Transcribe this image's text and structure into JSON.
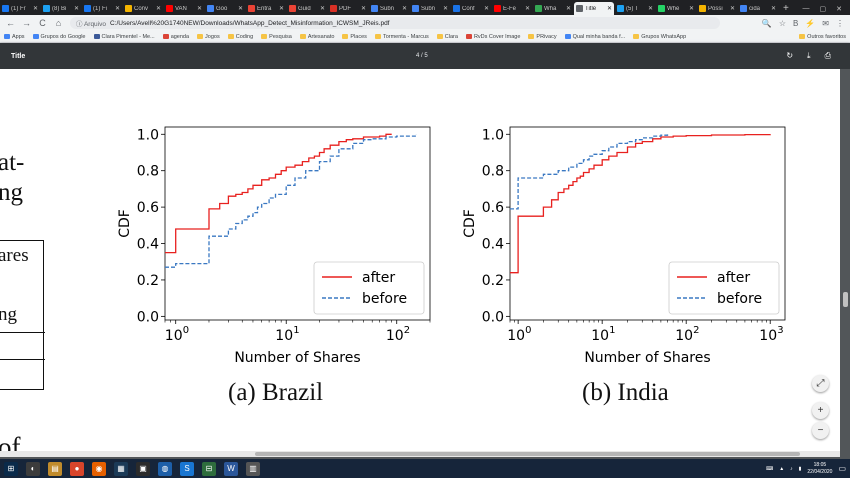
{
  "tabs": [
    {
      "label": "(1) Fr",
      "color": "#1877f2"
    },
    {
      "label": "(8) Bi",
      "color": "#1da1f2"
    },
    {
      "label": "(1) Fi",
      "color": "#1877f2"
    },
    {
      "label": "Conv",
      "color": "#f4b400"
    },
    {
      "label": "VAN",
      "color": "#ff0000"
    },
    {
      "label": "Goo",
      "color": "#4285f4"
    },
    {
      "label": "Entra",
      "color": "#ea4335"
    },
    {
      "label": "Guid",
      "color": "#ea4335"
    },
    {
      "label": "PDF",
      "color": "#d93025"
    },
    {
      "label": "Subn",
      "color": "#4285f4"
    },
    {
      "label": "Subn",
      "color": "#4285f4"
    },
    {
      "label": "Conf",
      "color": "#1a73e8"
    },
    {
      "label": "E-Fe",
      "color": "#ff0000"
    },
    {
      "label": "Wha",
      "color": "#34a853"
    },
    {
      "label": "Title",
      "color": "#5f6368",
      "active": true
    },
    {
      "label": "(5) T",
      "color": "#1da1f2"
    },
    {
      "label": "Whe",
      "color": "#25d366"
    },
    {
      "label": "Possi",
      "color": "#f4b400"
    },
    {
      "label": "cida",
      "color": "#4285f4"
    }
  ],
  "toolbar": {
    "back": "←",
    "forward": "→",
    "reload": "C",
    "home": "⌂",
    "omni_label": "ⓘ Arquivo",
    "url": "C:/Users/Avell%20G1740NEW/Downloads/WhatsApp_Detect_Misinformation_ICWSM_JReis.pdf",
    "right_icons": [
      "🔍",
      "☆",
      "B",
      "⚡",
      "✉",
      "⋮"
    ]
  },
  "bookmarks": {
    "items": [
      {
        "label": "Apps",
        "kind": "g"
      },
      {
        "label": "Grupos do Google",
        "kind": "g"
      },
      {
        "label": "Clara Pimentel - Me...",
        "kind": "b"
      },
      {
        "label": "agenda",
        "kind": "r"
      },
      {
        "label": "Jogos",
        "kind": "f"
      },
      {
        "label": "Coding",
        "kind": "f"
      },
      {
        "label": "Pesquisa",
        "kind": "f"
      },
      {
        "label": "Artesanato",
        "kind": "f"
      },
      {
        "label": "Places",
        "kind": "f"
      },
      {
        "label": "Tormenta - Marcus",
        "kind": "f"
      },
      {
        "label": "Clara",
        "kind": "f"
      },
      {
        "label": "RvDs Cover Image",
        "kind": "r"
      },
      {
        "label": "PRivacy",
        "kind": "f"
      },
      {
        "label": "Qual minha banda f...",
        "kind": "g"
      },
      {
        "label": "Grupos WhatsApp",
        "kind": "f"
      }
    ],
    "other": "Outros favoritos"
  },
  "pdf": {
    "title": "Title",
    "pages": "4 / 5",
    "actions": {
      "rotate": "↻",
      "download": "⤓",
      "print": "⎙"
    }
  },
  "page": {
    "left_line1": "at-",
    "left_line2": "ng",
    "table_text1": "ares",
    "table_text2": "ng",
    "left_line3": "of",
    "caption_a": "(a)  Brazil",
    "caption_b": "(b)  India"
  },
  "zoom": {
    "fit": "⤢",
    "plus": "+",
    "minus": "−"
  },
  "taskbar": {
    "icons": [
      "⊞",
      "◐",
      "▤",
      "●",
      "◉",
      "▦",
      "▣",
      "◍",
      "S",
      "⊟",
      "W",
      "▥"
    ],
    "time": "18:05",
    "date": "22/04/2020",
    "tray_icons": [
      "⌨",
      "▲",
      "♪",
      "▮"
    ]
  },
  "chart_data": [
    {
      "type": "line",
      "panel": "Brazil",
      "xscale": "log",
      "xlim": [
        0.8,
        200
      ],
      "ylim": [
        -0.02,
        1.04
      ],
      "xlabel": "Number of Shares",
      "ylabel": "CDF",
      "xticks": [
        {
          "v": 1,
          "base": "10",
          "exp": "0"
        },
        {
          "v": 10,
          "base": "10",
          "exp": "1"
        },
        {
          "v": 100,
          "base": "10",
          "exp": "2"
        }
      ],
      "yticks": [
        "0.0",
        "0.2",
        "0.4",
        "0.6",
        "0.8",
        "1.0"
      ],
      "legend": "lower right",
      "series": [
        {
          "name": "after",
          "color": "#e8211f",
          "dash": false,
          "x": [
            0.8,
            1,
            1,
            2,
            2,
            2.5,
            2.5,
            3,
            3,
            3.5,
            4,
            4.5,
            5,
            5.5,
            6,
            7,
            8,
            9,
            10,
            12,
            14,
            16,
            18,
            20,
            22,
            25,
            30,
            35,
            40,
            50,
            70,
            80,
            90
          ],
          "y": [
            0.35,
            0.35,
            0.48,
            0.48,
            0.59,
            0.59,
            0.62,
            0.62,
            0.66,
            0.67,
            0.68,
            0.7,
            0.72,
            0.72,
            0.75,
            0.76,
            0.78,
            0.8,
            0.82,
            0.83,
            0.85,
            0.87,
            0.88,
            0.9,
            0.92,
            0.94,
            0.96,
            0.97,
            0.975,
            0.985,
            0.99,
            1.0,
            1.0
          ]
        },
        {
          "name": "before",
          "color": "#3a78c2",
          "dash": true,
          "x": [
            0.8,
            1,
            1,
            2,
            2,
            3,
            3,
            3.5,
            3.5,
            4,
            4.5,
            5,
            5.5,
            6,
            7,
            8,
            10,
            12,
            15,
            20,
            25,
            30,
            40,
            50,
            60,
            80,
            100,
            150
          ],
          "y": [
            0.27,
            0.27,
            0.29,
            0.29,
            0.44,
            0.44,
            0.48,
            0.48,
            0.51,
            0.53,
            0.55,
            0.57,
            0.6,
            0.62,
            0.65,
            0.67,
            0.72,
            0.76,
            0.8,
            0.85,
            0.88,
            0.92,
            0.95,
            0.97,
            0.975,
            0.985,
            0.99,
            1.0
          ]
        }
      ]
    },
    {
      "type": "line",
      "panel": "India",
      "xscale": "log",
      "xlim": [
        0.8,
        1500
      ],
      "ylim": [
        -0.02,
        1.04
      ],
      "xlabel": "Number of Shares",
      "ylabel": "CDF",
      "xticks": [
        {
          "v": 1,
          "base": "10",
          "exp": "0"
        },
        {
          "v": 10,
          "base": "10",
          "exp": "1"
        },
        {
          "v": 100,
          "base": "10",
          "exp": "2"
        },
        {
          "v": 1000,
          "base": "10",
          "exp": "3"
        }
      ],
      "yticks": [
        "0.0",
        "0.2",
        "0.4",
        "0.6",
        "0.8",
        "1.0"
      ],
      "legend": "lower right",
      "series": [
        {
          "name": "after",
          "color": "#e8211f",
          "dash": false,
          "x": [
            0.8,
            1,
            1,
            2,
            2,
            2.5,
            2.5,
            3,
            3,
            3.5,
            4,
            4.5,
            5,
            5.5,
            6,
            7,
            8,
            10,
            12,
            15,
            20,
            25,
            30,
            40,
            50,
            70,
            100,
            200,
            500,
            1000
          ],
          "y": [
            0.24,
            0.24,
            0.55,
            0.55,
            0.6,
            0.6,
            0.64,
            0.64,
            0.68,
            0.7,
            0.72,
            0.74,
            0.76,
            0.77,
            0.79,
            0.81,
            0.83,
            0.86,
            0.88,
            0.9,
            0.93,
            0.95,
            0.96,
            0.975,
            0.985,
            0.99,
            0.993,
            0.996,
            0.998,
            1.0
          ]
        },
        {
          "name": "before",
          "color": "#3a78c2",
          "dash": true,
          "x": [
            0.8,
            1,
            1,
            2,
            2,
            3,
            3,
            4,
            5,
            6,
            7,
            8,
            10,
            12,
            15,
            20,
            25,
            30,
            40,
            50,
            60
          ],
          "y": [
            0.59,
            0.59,
            0.76,
            0.76,
            0.78,
            0.78,
            0.8,
            0.82,
            0.84,
            0.86,
            0.88,
            0.89,
            0.91,
            0.93,
            0.95,
            0.96,
            0.97,
            0.98,
            0.99,
            0.995,
            1.0
          ]
        }
      ]
    }
  ]
}
